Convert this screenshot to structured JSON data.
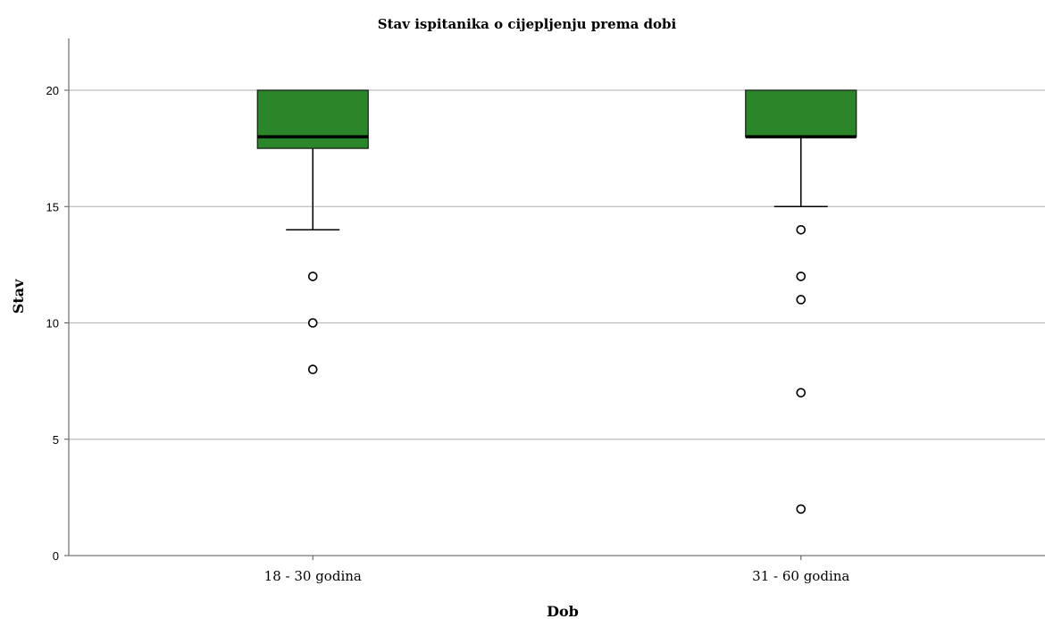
{
  "chart_data": {
    "type": "boxplot",
    "title": "Stav ispitanika o cijepljenju prema dobi",
    "xlabel": "Dob",
    "ylabel": "Stav",
    "ylim": [
      0,
      22
    ],
    "yticks": [
      0,
      5,
      10,
      15,
      20
    ],
    "grid": true,
    "box_color": "#2b8529",
    "categories": [
      "18 - 30 godina",
      "31 - 60 godina"
    ],
    "boxes": [
      {
        "category": "18 - 30 godina",
        "whisker_low": 14,
        "q1": 17.5,
        "median": 18,
        "q3": 20,
        "whisker_high": 20,
        "outliers": [
          12,
          10,
          8
        ]
      },
      {
        "category": "31 - 60 godina",
        "whisker_low": 15,
        "q1": 18,
        "median": 18,
        "q3": 20,
        "whisker_high": 20,
        "outliers": [
          14,
          12,
          11,
          7,
          2
        ]
      }
    ]
  }
}
